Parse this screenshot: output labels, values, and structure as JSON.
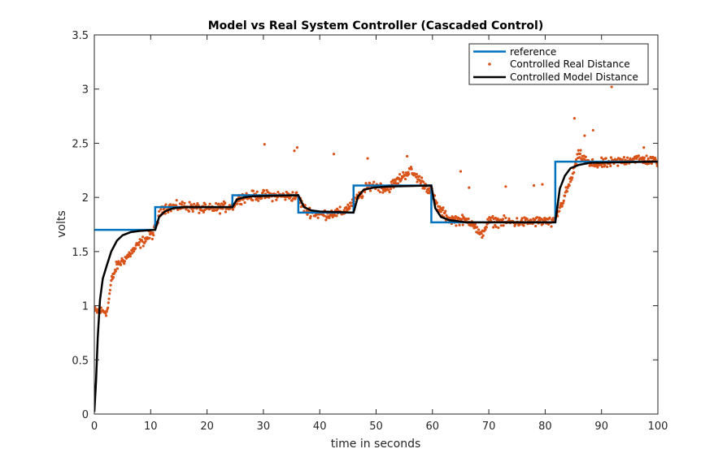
{
  "chart_data": {
    "type": "line",
    "title": "Model vs Real System Controller (Cascaded Control)",
    "xlabel": "time in seconds",
    "ylabel": "volts",
    "xlim": [
      0,
      100
    ],
    "ylim": [
      0,
      3.5
    ],
    "xticks": [
      0,
      10,
      20,
      30,
      40,
      50,
      60,
      70,
      80,
      90,
      100
    ],
    "yticks": [
      0,
      0.5,
      1,
      1.5,
      2,
      2.5,
      3,
      3.5
    ],
    "xtick_labels": [
      "0",
      "10",
      "20",
      "30",
      "40",
      "50",
      "60",
      "70",
      "80",
      "90",
      "100"
    ],
    "ytick_labels": [
      "0",
      "0.5",
      "1",
      "1.5",
      "2",
      "2.5",
      "3",
      "3.5"
    ],
    "grid": false,
    "legend_position": "top-right",
    "colors": {
      "reference": "#0072BD",
      "real": "#D95319",
      "model": "#000000"
    },
    "series": [
      {
        "name": "reference",
        "style": "step",
        "points": [
          [
            0,
            1.7
          ],
          [
            10.8,
            1.7
          ],
          [
            10.8,
            1.91
          ],
          [
            24.5,
            1.91
          ],
          [
            24.5,
            2.02
          ],
          [
            36.2,
            2.02
          ],
          [
            36.2,
            1.86
          ],
          [
            46.0,
            1.86
          ],
          [
            46.0,
            2.11
          ],
          [
            59.8,
            2.11
          ],
          [
            59.8,
            1.77
          ],
          [
            81.8,
            1.77
          ],
          [
            81.8,
            2.33
          ],
          [
            100,
            2.33
          ]
        ]
      },
      {
        "name": "Controlled Real Distance",
        "style": "markers",
        "keypoints": [
          [
            0,
            0.95
          ],
          [
            2.3,
            0.95
          ],
          [
            3,
            1.22
          ],
          [
            4,
            1.37
          ],
          [
            6,
            1.46
          ],
          [
            8,
            1.57
          ],
          [
            10.5,
            1.67
          ],
          [
            12,
            1.9
          ],
          [
            16,
            1.92
          ],
          [
            20,
            1.89
          ],
          [
            24.5,
            1.92
          ],
          [
            26,
            2.0
          ],
          [
            30,
            2.02
          ],
          [
            36,
            2.01
          ],
          [
            37.5,
            1.88
          ],
          [
            40,
            1.84
          ],
          [
            44,
            1.86
          ],
          [
            46.5,
            1.98
          ],
          [
            49,
            2.12
          ],
          [
            52,
            2.08
          ],
          [
            56,
            2.25
          ],
          [
            58,
            2.15
          ],
          [
            59.8,
            2.05
          ],
          [
            61,
            1.9
          ],
          [
            63,
            1.8
          ],
          [
            67,
            1.78
          ],
          [
            68.5,
            1.64
          ],
          [
            70,
            1.78
          ],
          [
            75,
            1.77
          ],
          [
            80,
            1.78
          ],
          [
            81.5,
            1.76
          ],
          [
            83,
            1.95
          ],
          [
            84.5,
            2.15
          ],
          [
            86,
            2.4
          ],
          [
            88,
            2.3
          ],
          [
            92,
            2.32
          ],
          [
            96,
            2.36
          ],
          [
            100,
            2.33
          ]
        ],
        "outliers": [
          [
            30.2,
            2.49
          ],
          [
            35.5,
            2.43
          ],
          [
            36,
            2.46
          ],
          [
            42.5,
            2.4
          ],
          [
            48.5,
            2.36
          ],
          [
            55.5,
            2.38
          ],
          [
            65,
            2.24
          ],
          [
            66.5,
            2.09
          ],
          [
            73,
            2.1
          ],
          [
            78,
            2.11
          ],
          [
            79.5,
            2.12
          ],
          [
            85.2,
            2.73
          ],
          [
            87,
            2.57
          ],
          [
            88.5,
            2.62
          ],
          [
            91.8,
            3.02
          ],
          [
            97.5,
            2.46
          ]
        ]
      },
      {
        "name": "Controlled Model Distance",
        "style": "line",
        "points": [
          [
            0,
            0.02
          ],
          [
            0.3,
            0.3
          ],
          [
            0.6,
            0.7
          ],
          [
            1.0,
            1.05
          ],
          [
            1.5,
            1.25
          ],
          [
            2.2,
            1.37
          ],
          [
            3.0,
            1.5
          ],
          [
            4.0,
            1.6
          ],
          [
            5.0,
            1.65
          ],
          [
            6.5,
            1.68
          ],
          [
            8.0,
            1.69
          ],
          [
            10.8,
            1.7
          ],
          [
            11.5,
            1.82
          ],
          [
            12.5,
            1.87
          ],
          [
            14,
            1.9
          ],
          [
            16,
            1.91
          ],
          [
            24.5,
            1.91
          ],
          [
            25.3,
            1.98
          ],
          [
            26.5,
            2.0
          ],
          [
            28,
            2.01
          ],
          [
            36.2,
            2.02
          ],
          [
            37.2,
            1.91
          ],
          [
            38.5,
            1.88
          ],
          [
            40,
            1.87
          ],
          [
            46.0,
            1.86
          ],
          [
            46.8,
            2.01
          ],
          [
            47.8,
            2.07
          ],
          [
            49.5,
            2.09
          ],
          [
            52,
            2.1
          ],
          [
            59.8,
            2.11
          ],
          [
            60.5,
            1.9
          ],
          [
            61.5,
            1.82
          ],
          [
            63,
            1.79
          ],
          [
            66,
            1.77
          ],
          [
            81.8,
            1.77
          ],
          [
            82.6,
            2.08
          ],
          [
            83.5,
            2.2
          ],
          [
            84.5,
            2.27
          ],
          [
            86,
            2.3
          ],
          [
            88,
            2.32
          ],
          [
            100,
            2.33
          ]
        ]
      }
    ]
  }
}
